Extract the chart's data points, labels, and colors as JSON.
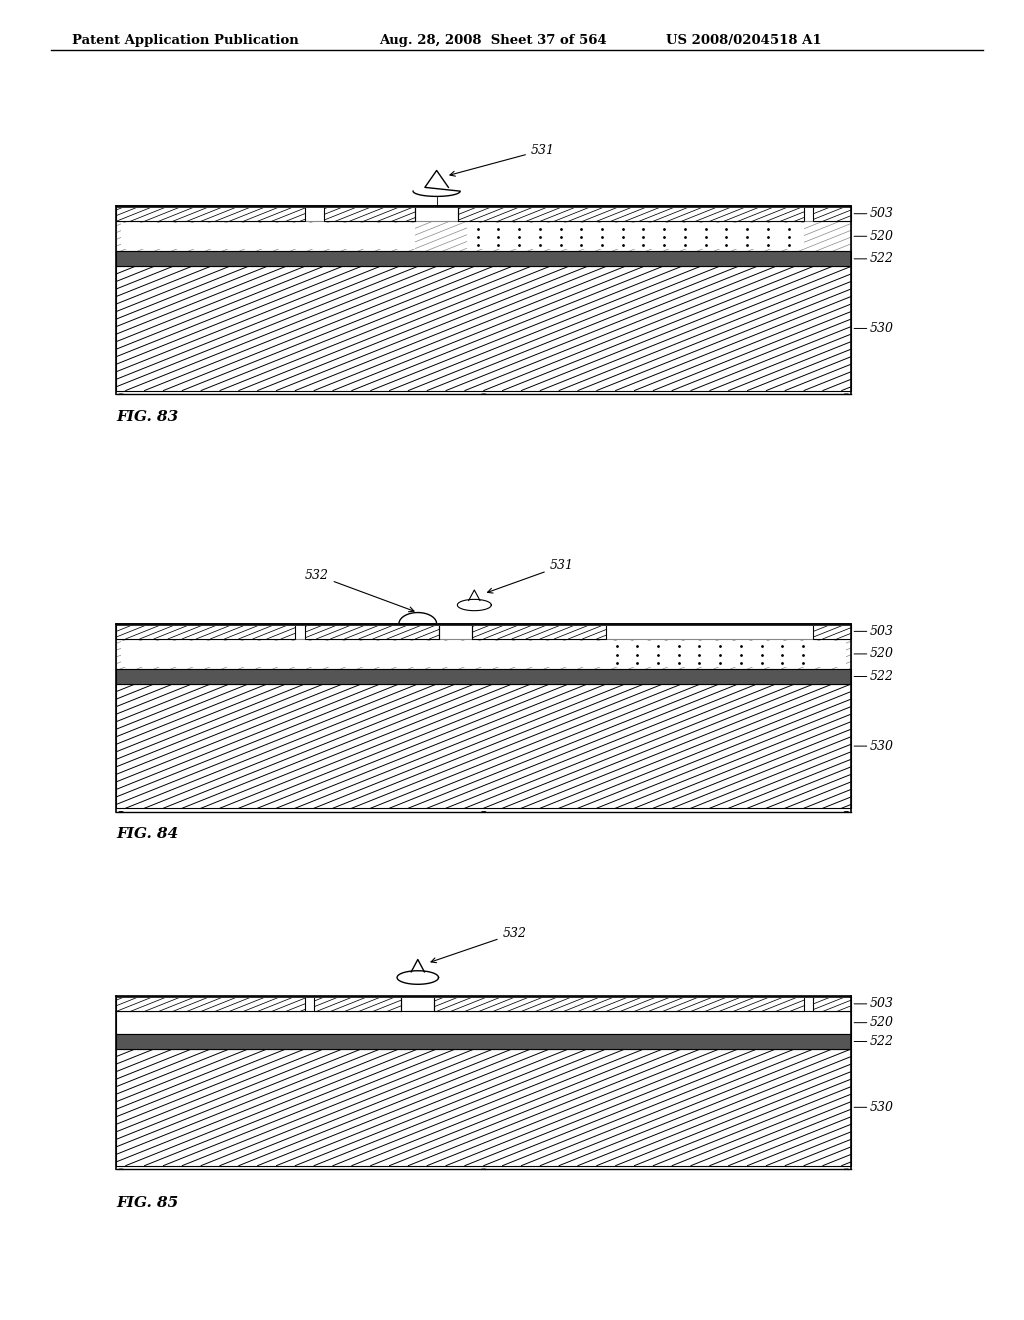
{
  "header_left": "Patent Application Publication",
  "header_mid": "Aug. 28, 2008  Sheet 37 of 564",
  "header_right": "US 2008/0204518 A1",
  "background_color": "#ffffff"
}
